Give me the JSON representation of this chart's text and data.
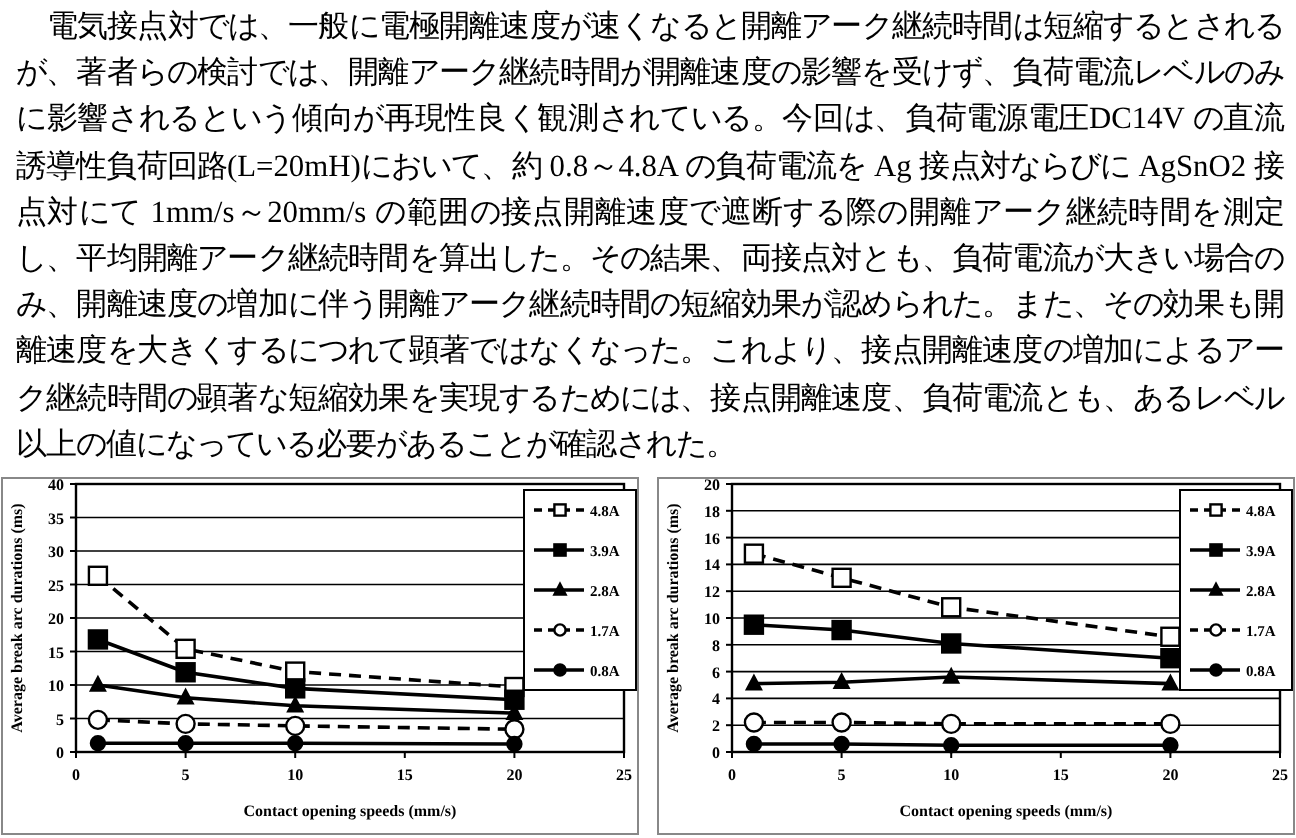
{
  "chart_data": [
    {
      "type": "other",
      "annotations": [
        "電気接点対では、一般に電極開離速度が速くなると開離アーク継続時間は短縮するとされるが、著者らの検討では、開離アーク継続時間が開離速度の影響を受けず、負荷電流レベルのみに影響されるという傾向が再現性良く観測されている。今回は、負荷電源電圧DC14V の直流誘導性負荷回路(L=20mH)において、約 0.8～4.8A の負荷電流を Ag 接点対ならびに AgSnO2 接点対にて 1mm/s～20mm/s の範囲の接点開離速度で遮断する際の開離アーク継続時間を測定し、平均開離アーク継続時間を算出した。その結果、両接点対とも、負荷電流が大きい場合のみ、開離速度の増加に伴う開離アーク継続時間の短縮効果が認められた。また、その効果も開離速度を大きくするにつれて顕著ではなくなった。これより、接点開離速度の増加によるアーク継続時間の顕著な短縮効果を実現するためには、接点開離速度、負荷電流とも、あるレベル以上の値になっている必要があることが確認された。"
      ]
    },
    {
      "type": "line",
      "xlabel": "Contact opening speeds  (mm/s)",
      "ylabel": "Average break arc durations (ms)",
      "x": [
        1,
        5,
        10,
        20
      ],
      "xlim": [
        0,
        25
      ],
      "xticks": [
        0,
        5,
        10,
        15,
        20,
        25
      ],
      "ylim": [
        0,
        40
      ],
      "yticks": [
        0,
        5,
        10,
        15,
        20,
        25,
        30,
        35,
        40
      ],
      "grid": "y",
      "legend": "top right",
      "series": [
        {
          "name": "4.8A",
          "color": "#000000",
          "marker": "square",
          "line_style": "dashed",
          "values": [
            26.3,
            15.4,
            12,
            9.7
          ]
        },
        {
          "name": "3.9A",
          "color": "#000000",
          "marker": "square",
          "line_style": "solid",
          "values": [
            16.8,
            11.9,
            9.5,
            7.8
          ]
        },
        {
          "name": "2.8A",
          "color": "#000000",
          "marker": "triangle",
          "line_style": "solid",
          "values": [
            10,
            8.1,
            6.9,
            5.8
          ]
        },
        {
          "name": "1.7A",
          "color": "#000000",
          "marker": "circle",
          "line_style": "dashed",
          "values": [
            4.8,
            4.2,
            3.9,
            3.4
          ]
        },
        {
          "name": "0.8A",
          "color": "#000000",
          "marker": "circle",
          "line_style": "solid",
          "values": [
            1.3,
            1.3,
            1.3,
            1.2
          ]
        }
      ]
    },
    {
      "type": "line",
      "xlabel": "Contact opening speeds  (mm/s)",
      "ylabel": "Average break arc durations (ms)",
      "x": [
        1,
        5,
        10,
        20
      ],
      "xlim": [
        0,
        25
      ],
      "xticks": [
        0,
        5,
        10,
        15,
        20,
        25
      ],
      "ylim": [
        0,
        20
      ],
      "yticks": [
        0,
        2,
        4,
        6,
        8,
        10,
        12,
        14,
        16,
        18,
        20
      ],
      "grid": "y",
      "legend": "top right",
      "series": [
        {
          "name": "4.8A",
          "color": "#000000",
          "marker": "square",
          "line_style": "dashed",
          "values": [
            14.8,
            13,
            10.8,
            8.6
          ]
        },
        {
          "name": "3.9A",
          "color": "#000000",
          "marker": "square",
          "line_style": "solid",
          "values": [
            9.5,
            9.1,
            8.1,
            7
          ]
        },
        {
          "name": "2.8A",
          "color": "#000000",
          "marker": "triangle",
          "line_style": "solid",
          "values": [
            5.1,
            5.2,
            5.6,
            5.1
          ]
        },
        {
          "name": "1.7A",
          "color": "#000000",
          "marker": "circle",
          "line_style": "dashed",
          "values": [
            2.2,
            2.2,
            2.1,
            2.1
          ]
        },
        {
          "name": "0.8A",
          "color": "#000000",
          "marker": "circle",
          "line_style": "solid",
          "values": [
            0.6,
            0.6,
            0.5,
            0.5
          ]
        }
      ]
    }
  ]
}
